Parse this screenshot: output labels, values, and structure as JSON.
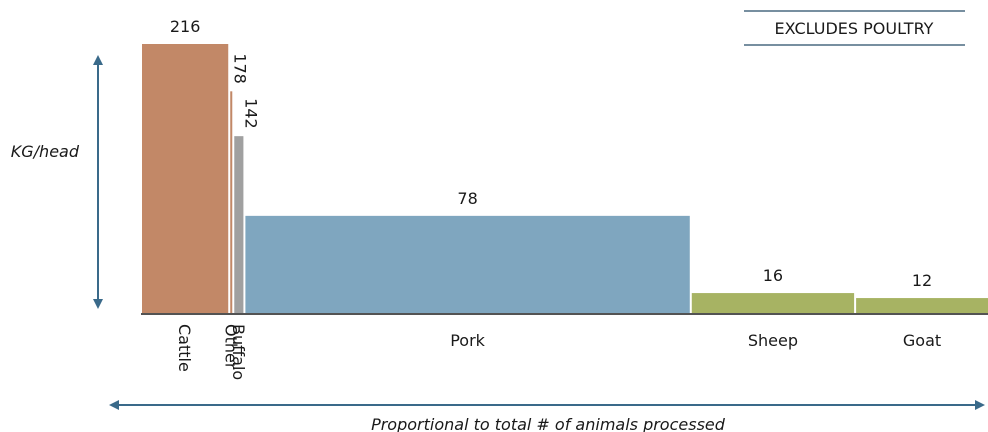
{
  "chart_data": {
    "type": "bar",
    "variable_width": true,
    "categories": [
      "Cattle",
      "Other",
      "Buffalo",
      "Pork",
      "Sheep",
      "Goat"
    ],
    "values": [
      216,
      178,
      142,
      78,
      16,
      12
    ],
    "relative_widths": [
      85,
      2,
      9,
      438,
      160,
      130
    ],
    "colors": [
      "#c28867",
      "#c28867",
      "#a0a0a0",
      "#7fa6bf",
      "#a7b363",
      "#a7b363"
    ],
    "rotated_categories": [
      "Cattle",
      "Other",
      "Buffalo"
    ],
    "ylabel": "KG/head",
    "xlabel": "Proportional to total # of animals processed",
    "note": "EXCLUDES POULTRY",
    "ylim": [
      0,
      216
    ],
    "grid": false
  }
}
